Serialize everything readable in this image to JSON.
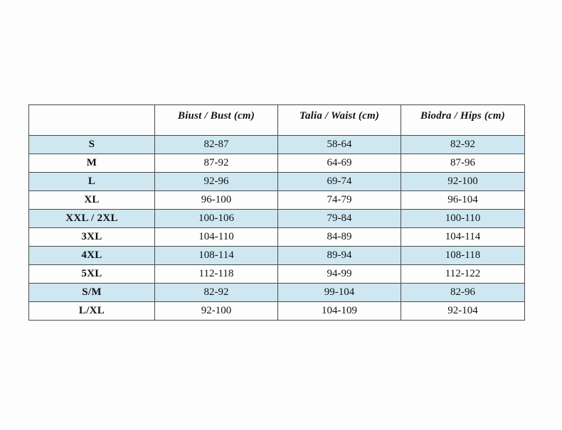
{
  "colors": {
    "page_background": "#fdfdfd",
    "stripe": "#cee7f1",
    "row_white": "#fdfdfd",
    "border": "#4a4a4a",
    "text": "#121212"
  },
  "chart_data": {
    "type": "table",
    "columns": [
      "",
      "Biust / Bust (cm)",
      "Talia / Waist (cm)",
      "Biodra / Hips (cm)"
    ],
    "rows": [
      {
        "size": "S",
        "bust": "82-87",
        "waist": "58-64",
        "hips": "82-92",
        "shaded": true
      },
      {
        "size": "M",
        "bust": "87-92",
        "waist": "64-69",
        "hips": "87-96",
        "shaded": false
      },
      {
        "size": "L",
        "bust": "92-96",
        "waist": "69-74",
        "hips": "92-100",
        "shaded": true
      },
      {
        "size": "XL",
        "bust": "96-100",
        "waist": "74-79",
        "hips": "96-104",
        "shaded": false
      },
      {
        "size": "XXL / 2XL",
        "bust": "100-106",
        "waist": "79-84",
        "hips": "100-110",
        "shaded": true
      },
      {
        "size": "3XL",
        "bust": "104-110",
        "waist": "84-89",
        "hips": "104-114",
        "shaded": false
      },
      {
        "size": "4XL",
        "bust": "108-114",
        "waist": "89-94",
        "hips": "108-118",
        "shaded": true
      },
      {
        "size": "5XL",
        "bust": "112-118",
        "waist": "94-99",
        "hips": "112-122",
        "shaded": false
      },
      {
        "size": "S/M",
        "bust": "82-92",
        "waist": "99-104",
        "hips": "82-96",
        "shaded": true
      },
      {
        "size": "L/XL",
        "bust": "92-100",
        "waist": "104-109",
        "hips": "92-104",
        "shaded": false
      }
    ]
  }
}
